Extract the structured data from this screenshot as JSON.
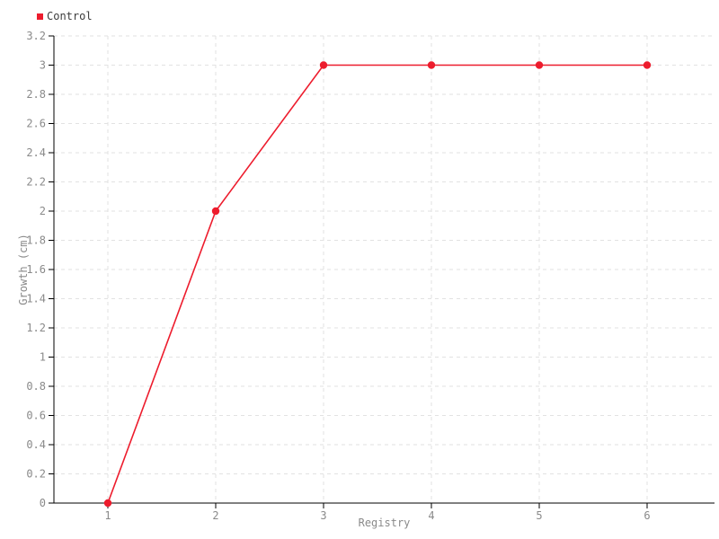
{
  "legend": {
    "items": [
      {
        "label": "Control",
        "color": "#ed1c2d"
      }
    ]
  },
  "chart_data": {
    "type": "line",
    "title": "",
    "x": [
      1,
      2,
      3,
      4,
      5,
      6
    ],
    "x_tick_labels": [
      "1",
      "2",
      "3",
      "4",
      "5",
      "6"
    ],
    "series": [
      {
        "name": "Control",
        "color": "#ed1c2d",
        "values": [
          0,
          2,
          3,
          3,
          3,
          3
        ]
      }
    ],
    "xlabel": "Registry",
    "ylabel": "Growth (cm)",
    "xlim": [
      0.5,
      6.625
    ],
    "ylim": [
      0,
      3.2
    ],
    "y_tick_step": 0.2,
    "grid": true,
    "grid_style": "dashed",
    "legend_position": "top-left",
    "colors": {
      "grid": "#e2e2e2",
      "axis": "#000000",
      "tick_text": "#8a8a8a",
      "axis_label_text": "#8a8a8a",
      "legend_text": "#3c3c3c"
    }
  }
}
